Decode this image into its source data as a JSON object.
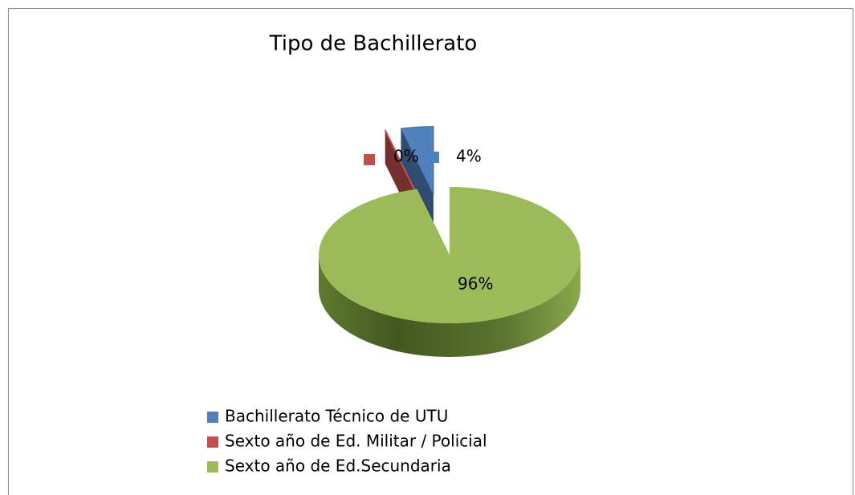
{
  "chart_data": {
    "type": "pie3d",
    "title": "Tipo de Bachillerato",
    "categories": [
      "Bachillerato Técnico de UTU",
      "Sexto año de Ed. Militar / Policial",
      "Sexto año de Ed.Secundaria"
    ],
    "values": [
      4,
      0,
      96
    ],
    "value_labels": [
      "4%",
      "0%",
      "96%"
    ],
    "colors": [
      "#4f81bd",
      "#c0504d",
      "#9bbb59"
    ],
    "legend": "bottom"
  }
}
